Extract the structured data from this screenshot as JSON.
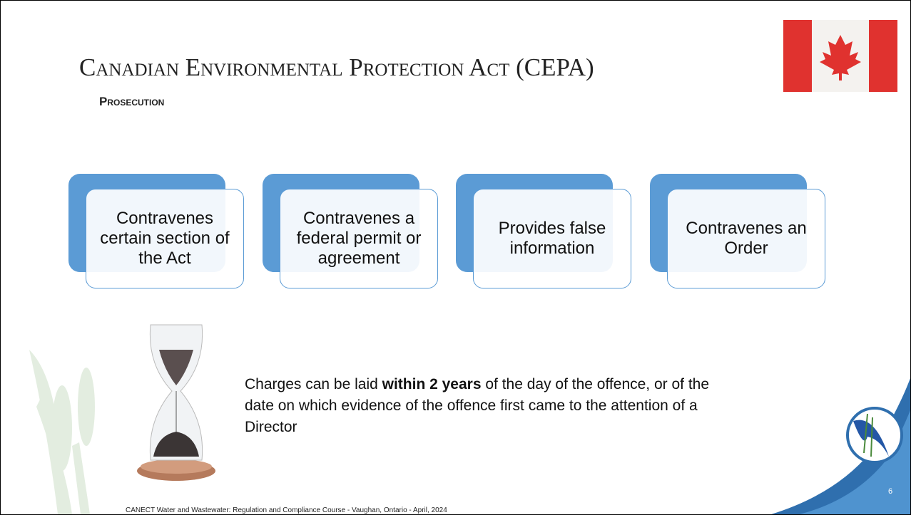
{
  "header": {
    "title": "Canadian Environmental Protection Act (CEPA)",
    "subtitle": "Prosecution"
  },
  "boxes": [
    "Contravenes certain section of the Act",
    "Contravenes a federal permit or agreement",
    "Provides false information",
    "Contravenes an Order"
  ],
  "body": {
    "before": "Charges can be laid ",
    "bold": "within 2 years",
    "after": " of the day of the offence, or of the date on which evidence of the offence first came to the attention of a Director"
  },
  "footer": {
    "text": "CANECT Water and Wastewater: Regulation and Compliance Course - Vaughan, Ontario - April, 2024",
    "page": "6"
  }
}
